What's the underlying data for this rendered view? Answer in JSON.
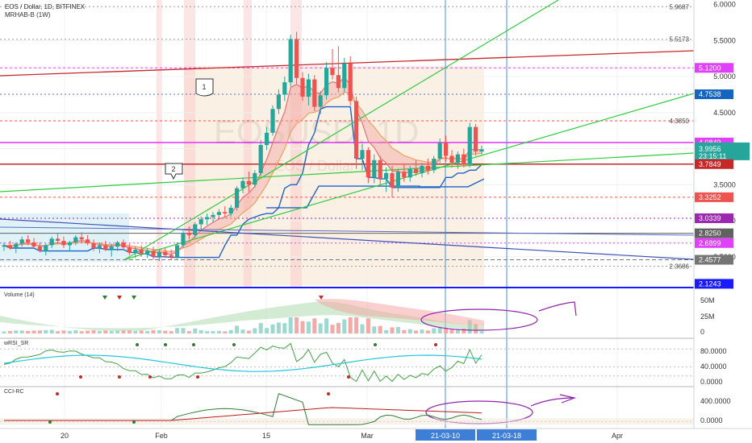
{
  "header": {
    "symbol_line": "EOS / Dollar, 1D, BITFINEX",
    "indicator_line": "MRHAB-B (1W)"
  },
  "watermark": {
    "symbol": "EOSUSD, 1D",
    "name": "EOS / Dollar"
  },
  "colors": {
    "green_candle": "#26a69a",
    "red_candle": "#ef5350",
    "magenta": "#e040fb",
    "dark_red": "#c62828",
    "trend_green": "#2ecc40",
    "blue": "#1565c0",
    "pane_border": "#1a1aff",
    "teal_tag": "#26a69a",
    "vline": "#4a90d9"
  },
  "chart_data": [
    {
      "type": "candlestick",
      "title": "EOS / Dollar, 1D, BITFINEX",
      "ylim": [
        2.12,
        6.0
      ],
      "x_ticks": [
        "20",
        "Feb",
        "15",
        "Mar",
        "21-03-10",
        "21-03-18",
        "Apr"
      ],
      "y_ticks": [
        2.5,
        3.0,
        3.5,
        4.0,
        4.5,
        5.0,
        5.5,
        6.0
      ],
      "price_levels": [
        {
          "label": "5.9687",
          "value": 5.9687,
          "tag": false
        },
        {
          "label": "5.5173",
          "value": 5.5173,
          "tag": false
        },
        {
          "label": "5.1200",
          "value": 5.12,
          "tag": true,
          "color": "#e040fb"
        },
        {
          "label": "4.7538",
          "value": 4.7538,
          "tag": true,
          "color": "#1565c0"
        },
        {
          "label": "4.3850",
          "value": 4.385,
          "tag": false
        },
        {
          "label": "4.0849",
          "value": 4.0849,
          "tag": true,
          "color": "#e040fb"
        },
        {
          "label": "3.9956",
          "value": 3.9956,
          "tag": true,
          "color": "#26a69a"
        },
        {
          "label": "3.7849",
          "value": 3.7849,
          "tag": true,
          "color": "#c62828"
        },
        {
          "label": "3.3252",
          "value": 3.3252,
          "tag": true,
          "color": "#ef5350"
        },
        {
          "label": "3.0339",
          "value": 3.0339,
          "tag": true,
          "color": "#9c27b0"
        },
        {
          "label": "2.8250",
          "value": 2.825,
          "tag": true,
          "color": "#616161"
        },
        {
          "label": "2.6899",
          "value": 2.6899,
          "tag": true,
          "color": "#e040fb"
        },
        {
          "label": "2.4577",
          "value": 2.4577,
          "tag": true,
          "color": "#757575"
        },
        {
          "label": "2.3686",
          "value": 2.3686,
          "tag": false
        },
        {
          "label": "2.1243",
          "value": 2.1243,
          "tag": true,
          "color": "#1a1aff"
        }
      ],
      "countdown": "23:15:11",
      "annotations": [
        "1",
        "2"
      ],
      "candles": [
        [
          2.64,
          2.7,
          2.58,
          2.66
        ],
        [
          2.66,
          2.72,
          2.6,
          2.62
        ],
        [
          2.62,
          2.7,
          2.55,
          2.68
        ],
        [
          2.68,
          2.78,
          2.64,
          2.74
        ],
        [
          2.74,
          2.8,
          2.66,
          2.7
        ],
        [
          2.7,
          2.76,
          2.62,
          2.64
        ],
        [
          2.64,
          2.7,
          2.56,
          2.58
        ],
        [
          2.58,
          2.68,
          2.52,
          2.66
        ],
        [
          2.66,
          2.78,
          2.62,
          2.75
        ],
        [
          2.75,
          2.82,
          2.68,
          2.72
        ],
        [
          2.72,
          2.78,
          2.62,
          2.66
        ],
        [
          2.66,
          2.72,
          2.58,
          2.7
        ],
        [
          2.7,
          2.8,
          2.66,
          2.77
        ],
        [
          2.77,
          2.84,
          2.7,
          2.74
        ],
        [
          2.74,
          2.8,
          2.66,
          2.69
        ],
        [
          2.69,
          2.74,
          2.58,
          2.62
        ],
        [
          2.62,
          2.7,
          2.55,
          2.66
        ],
        [
          2.66,
          2.72,
          2.58,
          2.6
        ],
        [
          2.6,
          2.68,
          2.5,
          2.64
        ],
        [
          2.64,
          2.72,
          2.58,
          2.7
        ],
        [
          2.7,
          2.74,
          2.6,
          2.63
        ],
        [
          2.63,
          2.68,
          2.52,
          2.56
        ],
        [
          2.56,
          2.64,
          2.48,
          2.6
        ],
        [
          2.6,
          2.66,
          2.5,
          2.54
        ],
        [
          2.54,
          2.62,
          2.48,
          2.58
        ],
        [
          2.58,
          2.64,
          2.46,
          2.5
        ],
        [
          2.5,
          2.6,
          2.44,
          2.57
        ],
        [
          2.57,
          2.62,
          2.48,
          2.52
        ],
        [
          2.52,
          2.6,
          2.46,
          2.49
        ],
        [
          2.49,
          2.7,
          2.47,
          2.66
        ],
        [
          2.66,
          2.86,
          2.62,
          2.83
        ],
        [
          2.83,
          2.92,
          2.74,
          2.8
        ],
        [
          2.8,
          2.98,
          2.76,
          2.95
        ],
        [
          2.95,
          3.06,
          2.88,
          3.02
        ],
        [
          3.02,
          3.1,
          2.94,
          3.05
        ],
        [
          3.05,
          3.12,
          2.98,
          3.08
        ],
        [
          3.08,
          3.16,
          3.02,
          3.12
        ],
        [
          3.12,
          3.2,
          3.04,
          3.1
        ],
        [
          3.1,
          3.22,
          3.06,
          3.18
        ],
        [
          3.18,
          3.48,
          3.14,
          3.45
        ],
        [
          3.45,
          3.6,
          3.38,
          3.55
        ],
        [
          3.55,
          3.68,
          3.4,
          3.5
        ],
        [
          3.5,
          3.7,
          3.46,
          3.66
        ],
        [
          3.66,
          4.12,
          3.62,
          4.05
        ],
        [
          4.05,
          4.3,
          3.98,
          4.22
        ],
        [
          4.22,
          4.6,
          4.18,
          4.55
        ],
        [
          4.55,
          4.82,
          4.48,
          4.75
        ],
        [
          4.75,
          5.0,
          4.66,
          4.92
        ],
        [
          4.92,
          5.58,
          4.86,
          5.52
        ],
        [
          5.52,
          5.62,
          4.9,
          4.98
        ],
        [
          4.98,
          5.06,
          4.66,
          4.72
        ],
        [
          4.72,
          5.04,
          4.6,
          4.96
        ],
        [
          4.96,
          5.02,
          4.52,
          4.58
        ],
        [
          4.58,
          4.8,
          4.48,
          4.74
        ],
        [
          4.74,
          5.2,
          4.68,
          5.12
        ],
        [
          5.12,
          5.38,
          4.96,
          5.02
        ],
        [
          5.02,
          5.42,
          4.78,
          4.84
        ],
        [
          4.84,
          5.26,
          4.78,
          5.18
        ],
        [
          5.18,
          5.28,
          4.6,
          4.66
        ],
        [
          4.66,
          4.72,
          3.72,
          3.86
        ],
        [
          3.86,
          4.06,
          3.7,
          3.98
        ],
        [
          3.98,
          4.02,
          3.52,
          3.6
        ],
        [
          3.6,
          3.92,
          3.52,
          3.84
        ],
        [
          3.84,
          3.9,
          3.5,
          3.58
        ],
        [
          3.58,
          3.74,
          3.4,
          3.66
        ],
        [
          3.66,
          3.76,
          3.32,
          3.46
        ],
        [
          3.46,
          3.72,
          3.4,
          3.68
        ],
        [
          3.68,
          3.78,
          3.54,
          3.6
        ],
        [
          3.6,
          3.76,
          3.54,
          3.72
        ],
        [
          3.72,
          3.84,
          3.62,
          3.66
        ],
        [
          3.66,
          3.8,
          3.6,
          3.76
        ],
        [
          3.76,
          3.86,
          3.64,
          3.7
        ],
        [
          3.7,
          3.9,
          3.66,
          3.86
        ],
        [
          3.86,
          4.14,
          3.8,
          4.08
        ],
        [
          4.08,
          4.18,
          3.82,
          3.9
        ],
        [
          3.9,
          3.98,
          3.74,
          3.8
        ],
        [
          3.8,
          3.96,
          3.72,
          3.92
        ],
        [
          3.92,
          4.0,
          3.74,
          3.78
        ],
        [
          3.78,
          4.36,
          3.74,
          4.3
        ],
        [
          4.3,
          4.34,
          3.9,
          3.96
        ],
        [
          3.96,
          4.04,
          3.92,
          3.99
        ]
      ]
    },
    {
      "type": "bar",
      "title": "Volume (14)",
      "y_ticks": [
        "50M",
        "25M",
        "0"
      ],
      "ylim": [
        0,
        60000000
      ]
    },
    {
      "type": "line",
      "title": "wRSI_SR",
      "y_ticks": [
        "80.0000",
        "40.0000",
        "0.0000"
      ],
      "ylim": [
        0,
        100
      ]
    },
    {
      "type": "line",
      "title": "CCI-RC",
      "y_ticks": [
        "400.0000",
        "0.0000"
      ],
      "ylim": [
        -100,
        620
      ]
    }
  ]
}
